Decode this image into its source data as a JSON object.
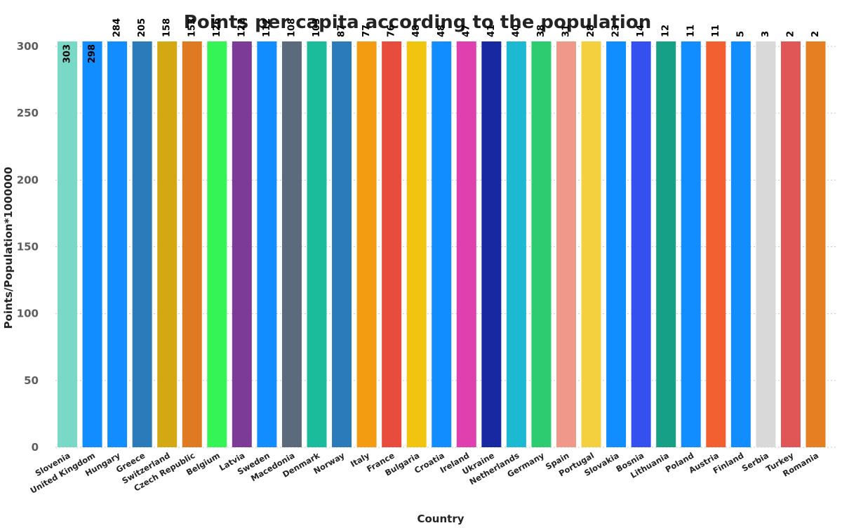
{
  "chart_data": {
    "type": "bar",
    "title": "Points per capita according to the population",
    "xlabel": "Country",
    "ylabel": "Points/Population*1000000",
    "ylim": [
      0,
      300
    ],
    "yticks": [
      0,
      50,
      100,
      150,
      200,
      250,
      300
    ],
    "grid": true,
    "categories": [
      "Slovenia",
      "United Kingdom",
      "Hungary",
      "Greece",
      "Switzerland",
      "Czech Republic",
      "Belgium",
      "Latvia",
      "Sweden",
      "Macedonia",
      "Denmark",
      "Norway",
      "Italy",
      "France",
      "Bulgaria",
      "Croatia",
      "Ireland",
      "Ukraine",
      "Netherlands",
      "Germany",
      "Spain",
      "Portugal",
      "Slovakia",
      "Bosnia",
      "Lithuania",
      "Poland",
      "Austria",
      "Finland",
      "Serbia",
      "Turkey",
      "Romania"
    ],
    "values": [
      303,
      298,
      284,
      205,
      158,
      153,
      126,
      122,
      112,
      108,
      103,
      87,
      77,
      76,
      48,
      48,
      47,
      41,
      40,
      38,
      31,
      28,
      23,
      14,
      12,
      11,
      11,
      5,
      3,
      2,
      2
    ],
    "colors": [
      "#7ad9c6",
      "#118dff",
      "#118dff",
      "#2b7bba",
      "#d4a812",
      "#e07a22",
      "#35f556",
      "#7c3b96",
      "#118dff",
      "#5b6b7c",
      "#1abc9c",
      "#2b7bba",
      "#f39c12",
      "#e74c3c",
      "#f1c40f",
      "#118dff",
      "#e040ae",
      "#1728a0",
      "#1cb9d2",
      "#2ecc71",
      "#f0998b",
      "#f4d03f",
      "#118dff",
      "#3451f0",
      "#16a085",
      "#118dff",
      "#f25f30",
      "#118dff",
      "#d9d9d9",
      "#e05555",
      "#e67e22"
    ]
  }
}
